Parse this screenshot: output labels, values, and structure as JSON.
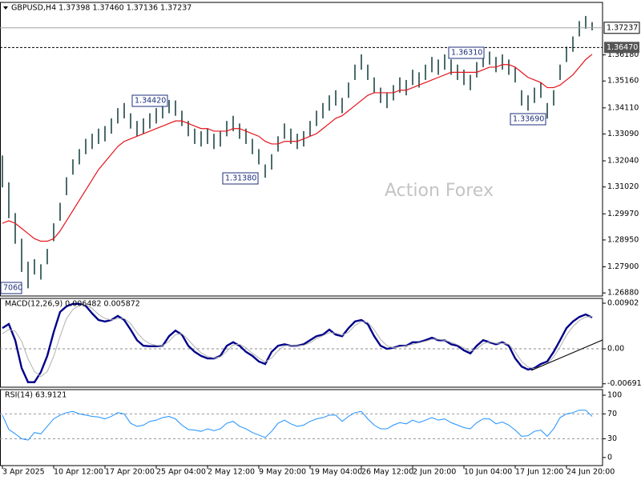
{
  "chart_data": [
    {
      "type": "ohlc",
      "title": "GBPUSD,H4  1.37398 1.37460 1.37136 1.37237",
      "watermark": "Action Forex",
      "color": "#1f4747",
      "high": [
        1.3225,
        1.312,
        1.3,
        1.29,
        1.281,
        1.282,
        1.28,
        1.286,
        1.296,
        1.304,
        1.314,
        1.321,
        1.325,
        1.329,
        1.331,
        1.333,
        1.334,
        1.337,
        1.341,
        1.343,
        1.339,
        1.336,
        1.337,
        1.339,
        1.341,
        1.343,
        1.3442,
        1.344,
        1.34,
        1.336,
        1.333,
        1.332,
        1.333,
        1.331,
        1.332,
        1.336,
        1.338,
        1.335,
        1.333,
        1.329,
        1.325,
        1.319,
        1.323,
        1.33,
        1.335,
        1.333,
        1.331,
        1.332,
        1.336,
        1.34,
        1.343,
        1.346,
        1.348,
        1.345,
        1.351,
        1.358,
        1.362,
        1.358,
        1.353,
        1.349,
        1.347,
        1.35,
        1.353,
        1.352,
        1.356,
        1.355,
        1.358,
        1.361,
        1.36,
        1.362,
        1.36,
        1.358,
        1.356,
        1.354,
        1.359,
        1.363,
        1.3631,
        1.361,
        1.362,
        1.36,
        1.357,
        1.348,
        1.346,
        1.349,
        1.351,
        1.343,
        1.348,
        1.358,
        1.365,
        1.369,
        1.375,
        1.377,
        1.3746
      ],
      "low": [
        1.31,
        1.298,
        1.288,
        1.277,
        1.2706,
        1.276,
        1.274,
        1.28,
        1.289,
        1.297,
        1.307,
        1.315,
        1.319,
        1.323,
        1.325,
        1.327,
        1.328,
        1.331,
        1.335,
        1.337,
        1.333,
        1.33,
        1.331,
        1.333,
        1.335,
        1.337,
        1.339,
        1.338,
        1.334,
        1.33,
        1.327,
        1.326,
        1.327,
        1.325,
        1.326,
        1.33,
        1.332,
        1.329,
        1.327,
        1.323,
        1.319,
        1.3138,
        1.317,
        1.324,
        1.329,
        1.327,
        1.325,
        1.326,
        1.33,
        1.334,
        1.337,
        1.34,
        1.342,
        1.339,
        1.345,
        1.352,
        1.356,
        1.352,
        1.347,
        1.343,
        1.341,
        1.344,
        1.347,
        1.346,
        1.35,
        1.349,
        1.352,
        1.355,
        1.354,
        1.356,
        1.354,
        1.352,
        1.35,
        1.348,
        1.353,
        1.357,
        1.358,
        1.355,
        1.356,
        1.354,
        1.351,
        1.342,
        1.34,
        1.343,
        1.345,
        1.3369,
        1.342,
        1.352,
        1.359,
        1.363,
        1.369,
        1.372,
        1.3714
      ],
      "ma": {
        "color": "#e3141c",
        "values": [
          1.296,
          1.297,
          1.296,
          1.294,
          1.292,
          1.29,
          1.289,
          1.289,
          1.29,
          1.293,
          1.297,
          1.301,
          1.305,
          1.309,
          1.313,
          1.317,
          1.32,
          1.323,
          1.326,
          1.328,
          1.329,
          1.33,
          1.331,
          1.332,
          1.333,
          1.334,
          1.335,
          1.336,
          1.336,
          1.335,
          1.334,
          1.333,
          1.333,
          1.332,
          1.332,
          1.332,
          1.333,
          1.333,
          1.332,
          1.331,
          1.33,
          1.328,
          1.327,
          1.327,
          1.328,
          1.328,
          1.328,
          1.329,
          1.33,
          1.331,
          1.333,
          1.335,
          1.337,
          1.338,
          1.34,
          1.342,
          1.344,
          1.346,
          1.347,
          1.347,
          1.347,
          1.347,
          1.348,
          1.348,
          1.349,
          1.35,
          1.351,
          1.352,
          1.353,
          1.354,
          1.355,
          1.355,
          1.355,
          1.355,
          1.355,
          1.356,
          1.357,
          1.357,
          1.358,
          1.358,
          1.357,
          1.355,
          1.353,
          1.352,
          1.351,
          1.349,
          1.349,
          1.35,
          1.352,
          1.354,
          1.357,
          1.36,
          1.362
        ]
      },
      "last_price": {
        "value": 1.37237,
        "label": "1.37237"
      },
      "level": {
        "value": 1.3647,
        "label": "1.36470"
      },
      "annotations": [
        "7060",
        "1.34420",
        "1.31380",
        "1.36310",
        "1.33690"
      ],
      "ylim": [
        1.2676,
        1.3823
      ],
      "yticks": [
        {
          "value": 1.2688,
          "label": "1.26880"
        },
        {
          "value": 1.279,
          "label": "1.27900"
        },
        {
          "value": 1.2895,
          "label": "1.28950"
        },
        {
          "value": 1.2997,
          "label": "1.29970"
        },
        {
          "value": 1.3102,
          "label": "1.31020"
        },
        {
          "value": 1.3204,
          "label": "1.32040"
        },
        {
          "value": 1.3309,
          "label": "1.33090"
        },
        {
          "value": 1.3411,
          "label": "1.34110"
        },
        {
          "value": 1.3516,
          "label": "1.35160"
        },
        {
          "value": 1.3618,
          "label": "1.36180"
        }
      ]
    },
    {
      "type": "line",
      "title": "MACD(12,26,9) 0.006482 0.005872",
      "series": [
        {
          "color": "#00008b",
          "values": [
            0.0041,
            0.0049,
            0.0017,
            -0.0038,
            -0.0066,
            -0.0066,
            -0.0046,
            -0.0014,
            0.0033,
            0.0073,
            0.0084,
            0.0089,
            0.0089,
            0.0085,
            0.007,
            0.0057,
            0.0054,
            0.0057,
            0.0065,
            0.0057,
            0.0038,
            0.0017,
            0.0006,
            0.0005,
            0.0005,
            0.0006,
            0.0025,
            0.0036,
            0.0028,
            0.0006,
            -0.0006,
            -0.0014,
            -0.0019,
            -0.0019,
            -0.0014,
            0.0006,
            0.0013,
            0.0006,
            -0.0006,
            -0.0014,
            -0.0025,
            -0.003,
            -0.0006,
            0.0006,
            0.0009,
            0.0006,
            0.0006,
            0.0009,
            0.0017,
            0.0025,
            0.0028,
            0.0038,
            0.0028,
            0.0025,
            0.0041,
            0.0054,
            0.0057,
            0.0049,
            0.0025,
            0.0006,
            0,
            0.0002,
            0.0006,
            0.0006,
            0.0013,
            0.0013,
            0.0017,
            0.0022,
            0.0017,
            0.0017,
            0.0009,
            0.0006,
            -0.0003,
            -0.0009,
            0.0006,
            0.0017,
            0.0013,
            0.0009,
            0.0013,
            0.0006,
            -0.0019,
            -0.0035,
            -0.0041,
            -0.0038,
            -0.003,
            -0.0025,
            -0.0006,
            0.0017,
            0.0041,
            0.0054,
            0.0063,
            0.0068,
            0.0062
          ]
        },
        {
          "color": "#b0b0b0",
          "values": [
            0.003,
            0.0038,
            0.0035,
            0.0015,
            -0.002,
            -0.0045,
            -0.0055,
            -0.0045,
            -0.0015,
            0.0025,
            0.006,
            0.0078,
            0.0086,
            0.0087,
            0.008,
            0.0068,
            0.006,
            0.0057,
            0.006,
            0.006,
            0.005,
            0.0032,
            0.0018,
            0.001,
            0.0007,
            0.0006,
            0.0015,
            0.0028,
            0.003,
            0.0018,
            0.0004,
            -0.0008,
            -0.0015,
            -0.0018,
            -0.0016,
            -0.0005,
            0.0008,
            0.0009,
            0.0002,
            -0.0009,
            -0.0018,
            -0.0026,
            -0.0018,
            -0.0004,
            0.0006,
            0.0007,
            0.0006,
            0.0007,
            0.0012,
            0.002,
            0.0026,
            0.0032,
            0.0031,
            0.0027,
            0.0033,
            0.0046,
            0.0054,
            0.0052,
            0.0038,
            0.0018,
            0.0006,
            0.0002,
            0.0004,
            0.0006,
            0.0009,
            0.0012,
            0.0015,
            0.0019,
            0.0019,
            0.0017,
            0.0013,
            0.0008,
            0.0002,
            -0.0005,
            0,
            0.001,
            0.0014,
            0.0011,
            0.0011,
            0.0009,
            -0.0006,
            -0.0025,
            -0.0036,
            -0.0039,
            -0.0035,
            -0.0029,
            -0.0016,
            0.0004,
            0.0027,
            0.0044,
            0.0056,
            0.0063,
            0.0064
          ]
        }
      ],
      "ylim": [
        -0.00759,
        0.00997
      ],
      "yticks": [
        -0.006915,
        {
          "value": 0,
          "label": "0.00"
        },
        0.00902
      ]
    },
    {
      "type": "line",
      "title": "RSI(14) 63.9121",
      "series": [
        {
          "color": "#1e90ff",
          "values": [
            68,
            45,
            38,
            30,
            28,
            40,
            38,
            50,
            62,
            68,
            72,
            74,
            70,
            68,
            66,
            65,
            62,
            66,
            72,
            70,
            55,
            50,
            52,
            58,
            60,
            64,
            66,
            62,
            52,
            45,
            44,
            42,
            46,
            43,
            46,
            55,
            58,
            50,
            46,
            40,
            36,
            32,
            42,
            55,
            60,
            54,
            50,
            52,
            58,
            62,
            64,
            68,
            68,
            58,
            66,
            72,
            74,
            62,
            52,
            46,
            46,
            52,
            56,
            54,
            60,
            56,
            60,
            64,
            60,
            62,
            56,
            52,
            48,
            46,
            56,
            62,
            62,
            54,
            57,
            52,
            44,
            34,
            35,
            42,
            44,
            34,
            46,
            64,
            70,
            72,
            76,
            76,
            66
          ]
        }
      ],
      "levels": [
        30,
        70
      ],
      "ylim": [
        -13,
        109
      ],
      "yticks": [
        0,
        30,
        70,
        100
      ],
      "categories": [
        "3 Apr 2025",
        null,
        null,
        null,
        null,
        null,
        null,
        null,
        "10 Apr 12:00",
        null,
        null,
        null,
        null,
        null,
        null,
        null,
        "17 Apr 20:00",
        null,
        null,
        null,
        null,
        null,
        null,
        null,
        "25 Apr 04:00",
        null,
        null,
        null,
        null,
        null,
        null,
        null,
        "2 May 12:00",
        null,
        null,
        null,
        null,
        null,
        null,
        null,
        "9 May 20:00",
        null,
        null,
        null,
        null,
        null,
        null,
        null,
        "19 May 04:00",
        null,
        null,
        null,
        null,
        null,
        null,
        null,
        "26 May 12:00",
        null,
        null,
        null,
        null,
        null,
        null,
        null,
        "2 Jun 20:00",
        null,
        null,
        null,
        null,
        null,
        null,
        null,
        "10 Jun 04:00",
        null,
        null,
        null,
        null,
        null,
        null,
        null,
        "17 Jun 12:00",
        null,
        null,
        null,
        null,
        null,
        null,
        null,
        "24 Jun 20:00",
        null,
        null,
        null,
        null
      ]
    }
  ]
}
